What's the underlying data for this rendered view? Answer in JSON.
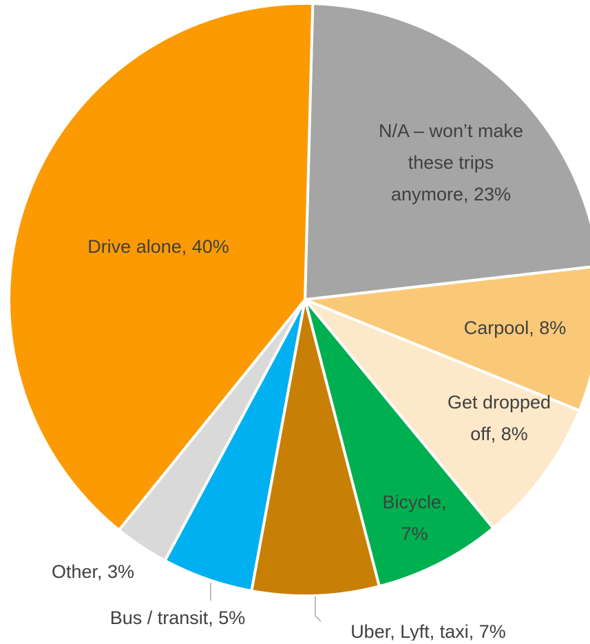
{
  "chart_data": {
    "type": "pie",
    "title": "",
    "slices": [
      {
        "label": "N/A – won’t make these trips anymore",
        "value": 23,
        "label_text": [
          "N/A – won’t make",
          "these trips",
          "anymore, 23%"
        ],
        "color": "#a5a5a5"
      },
      {
        "label": "Carpool",
        "value": 8,
        "label_text": [
          "Carpool, 8%"
        ],
        "color": "#fac978"
      },
      {
        "label": "Get dropped off",
        "value": 8,
        "label_text": [
          "Get dropped",
          "off, 8%"
        ],
        "color": "#fde9c9"
      },
      {
        "label": "Bicycle",
        "value": 7,
        "label_text": [
          "Bicycle,",
          "7%"
        ],
        "color": "#00b050"
      },
      {
        "label": "Uber, Lyft, taxi",
        "value": 7,
        "label_text": [
          "Uber, Lyft, taxi, 7%"
        ],
        "color": "#c87f06"
      },
      {
        "label": "Bus / transit",
        "value": 5,
        "label_text": [
          "Bus / transit, 5%"
        ],
        "color": "#00b0f0"
      },
      {
        "label": "Other",
        "value": 3,
        "label_text": [
          "Other, 3%"
        ],
        "color": "#d9d9d9"
      },
      {
        "label": "Drive alone",
        "value": 40,
        "label_text": [
          "Drive alone, 40%"
        ],
        "color": "#fb9a02"
      }
    ],
    "legend": "none",
    "label_color": "#404040",
    "leader_line_color": "#a6a6a6"
  }
}
